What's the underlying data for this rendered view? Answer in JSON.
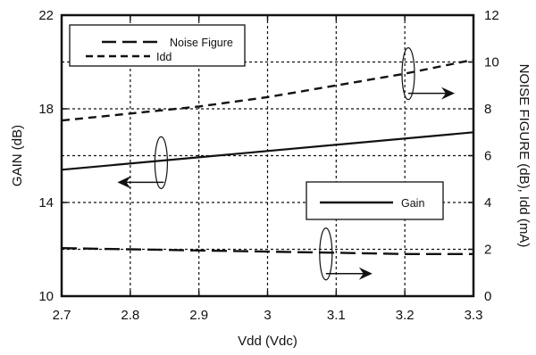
{
  "chart_data": {
    "type": "line",
    "xlabel": "Vdd (Vdc)",
    "ylabel_left": "GAIN (dB)",
    "ylabel_right": "NOISE FIGURE (dB), Idd (mA)",
    "xlim": [
      2.7,
      3.3
    ],
    "ylim_left": [
      10,
      22
    ],
    "ylim_right": [
      0,
      12
    ],
    "x_ticks": [
      "2.7",
      "2.8",
      "2.9",
      "3",
      "3.1",
      "3.2",
      "3.3"
    ],
    "y_ticks_left": [
      "10",
      "14",
      "18",
      "22"
    ],
    "y_ticks_right": [
      "0",
      "2",
      "4",
      "6",
      "8",
      "10",
      "12"
    ],
    "grid": true,
    "legends": [
      {
        "placement": "top-left",
        "entries": [
          {
            "label": "Noise Figure",
            "style": "long-dash"
          },
          {
            "label": "Idd",
            "style": "dash"
          }
        ]
      },
      {
        "placement": "center-right",
        "entries": [
          {
            "label": "Gain",
            "style": "solid"
          }
        ]
      }
    ],
    "series": [
      {
        "name": "Gain",
        "axis": "left",
        "style": "solid",
        "x": [
          2.7,
          3.3
        ],
        "y": [
          15.4,
          17.0
        ]
      },
      {
        "name": "Idd",
        "axis": "right",
        "style": "dash",
        "x": [
          2.7,
          2.8,
          2.9,
          3.0,
          3.1,
          3.2,
          3.3
        ],
        "y": [
          7.5,
          7.8,
          8.1,
          8.5,
          9.0,
          9.5,
          10.1
        ]
      },
      {
        "name": "Noise Figure",
        "axis": "right",
        "style": "long-dash",
        "x": [
          2.7,
          2.8,
          2.9,
          3.0,
          3.1,
          3.2,
          3.3
        ],
        "y": [
          2.05,
          2.0,
          1.95,
          1.9,
          1.85,
          1.8,
          1.8
        ]
      }
    ],
    "axis_indicators": [
      {
        "series": "Gain",
        "points_to": "left",
        "x": 2.845,
        "y": 5.7
      },
      {
        "series": "Idd",
        "points_to": "right",
        "x": 3.205,
        "y": 9.5
      },
      {
        "series": "Noise Figure",
        "points_to": "right",
        "x": 3.085,
        "y": 1.8
      }
    ]
  }
}
